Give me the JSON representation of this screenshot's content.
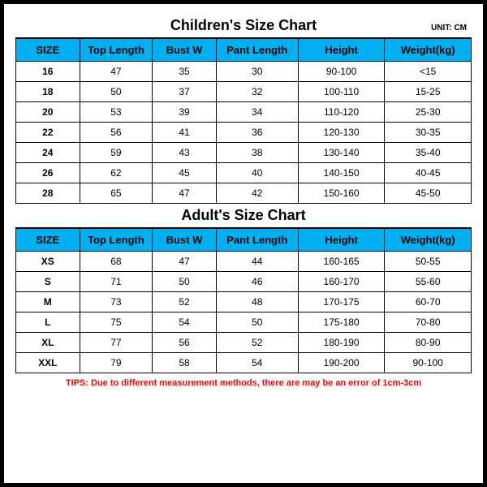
{
  "unit_label": "UNIT: CM",
  "children_chart": {
    "title": "Children's Size Chart",
    "columns": [
      "SIZE",
      "Top Length",
      "Bust W",
      "Pant Length",
      "Height",
      "Weight(kg)"
    ],
    "header_bg": "#00b0f0",
    "rows": [
      [
        "16",
        "47",
        "35",
        "30",
        "90-100",
        "<15"
      ],
      [
        "18",
        "50",
        "37",
        "32",
        "100-110",
        "15-25"
      ],
      [
        "20",
        "53",
        "39",
        "34",
        "110-120",
        "25-30"
      ],
      [
        "22",
        "56",
        "41",
        "36",
        "120-130",
        "30-35"
      ],
      [
        "24",
        "59",
        "43",
        "38",
        "130-140",
        "35-40"
      ],
      [
        "26",
        "62",
        "45",
        "40",
        "140-150",
        "40-45"
      ],
      [
        "28",
        "65",
        "47",
        "42",
        "150-160",
        "45-50"
      ]
    ]
  },
  "adult_chart": {
    "title": "Adult's Size Chart",
    "columns": [
      "SIZE",
      "Top Length",
      "Bust W",
      "Pant Length",
      "Height",
      "Weight(kg)"
    ],
    "header_bg": "#00b0f0",
    "rows": [
      [
        "XS",
        "68",
        "47",
        "44",
        "160-165",
        "50-55"
      ],
      [
        "S",
        "71",
        "50",
        "46",
        "160-170",
        "55-60"
      ],
      [
        "M",
        "73",
        "52",
        "48",
        "170-175",
        "60-70"
      ],
      [
        "L",
        "75",
        "54",
        "50",
        "175-180",
        "70-80"
      ],
      [
        "XL",
        "77",
        "56",
        "52",
        "180-190",
        "80-90"
      ],
      [
        "XXL",
        "79",
        "58",
        "54",
        "190-200",
        "90-100"
      ]
    ]
  },
  "tips": "TIPS: Due to different measurement methods, there are may be an error of 1cm-3cm",
  "tips_color": "#ff0000"
}
